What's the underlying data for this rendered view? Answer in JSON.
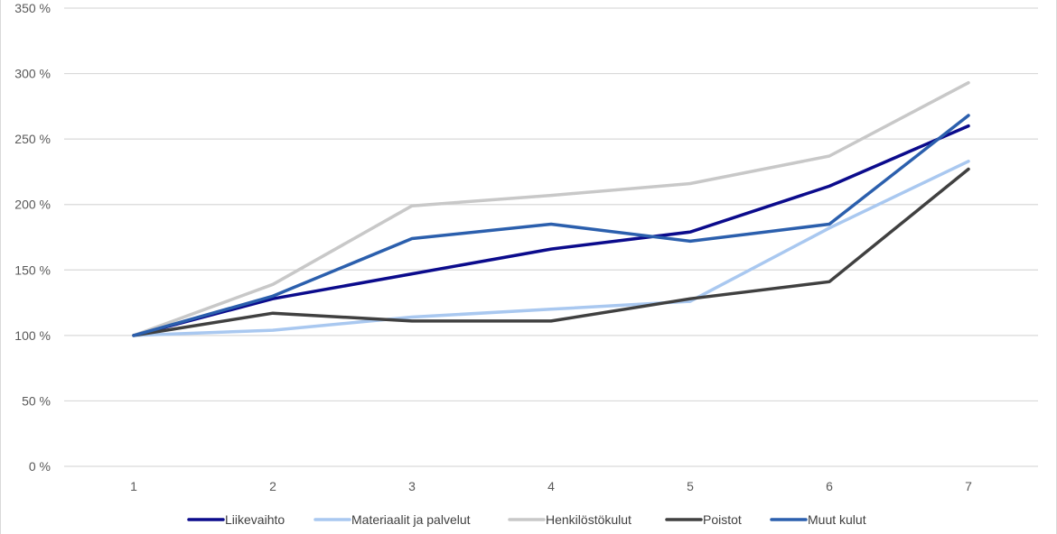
{
  "chart_data": {
    "type": "line",
    "title": "",
    "xlabel": "",
    "ylabel": "",
    "categories": [
      "1",
      "2",
      "3",
      "4",
      "5",
      "6",
      "7"
    ],
    "y_tick_labels": [
      "0 %",
      "50 %",
      "100 %",
      "150 %",
      "200 %",
      "250 %",
      "300 %",
      "350 %"
    ],
    "y_ticks": [
      0,
      50,
      100,
      150,
      200,
      250,
      300,
      350
    ],
    "ylim": [
      0,
      350
    ],
    "grid": true,
    "legend_position": "bottom",
    "series": [
      {
        "name": "Liikevaihto",
        "color": "#0b0b8c",
        "values": [
          100,
          128,
          147,
          166,
          179,
          214,
          260
        ]
      },
      {
        "name": "Materiaalit ja palvelut",
        "color": "#a9c8f0",
        "values": [
          100,
          104,
          114,
          120,
          126,
          182,
          233
        ]
      },
      {
        "name": "Henkilöstökulut",
        "color": "#c8c8c8",
        "values": [
          100,
          139,
          199,
          207,
          216,
          237,
          293
        ]
      },
      {
        "name": "Poistot",
        "color": "#404040",
        "values": [
          100,
          117,
          111,
          111,
          128,
          141,
          227
        ]
      },
      {
        "name": "Muut kulut",
        "color": "#2b5fad",
        "values": [
          100,
          130,
          174,
          185,
          172,
          185,
          268
        ]
      }
    ]
  }
}
